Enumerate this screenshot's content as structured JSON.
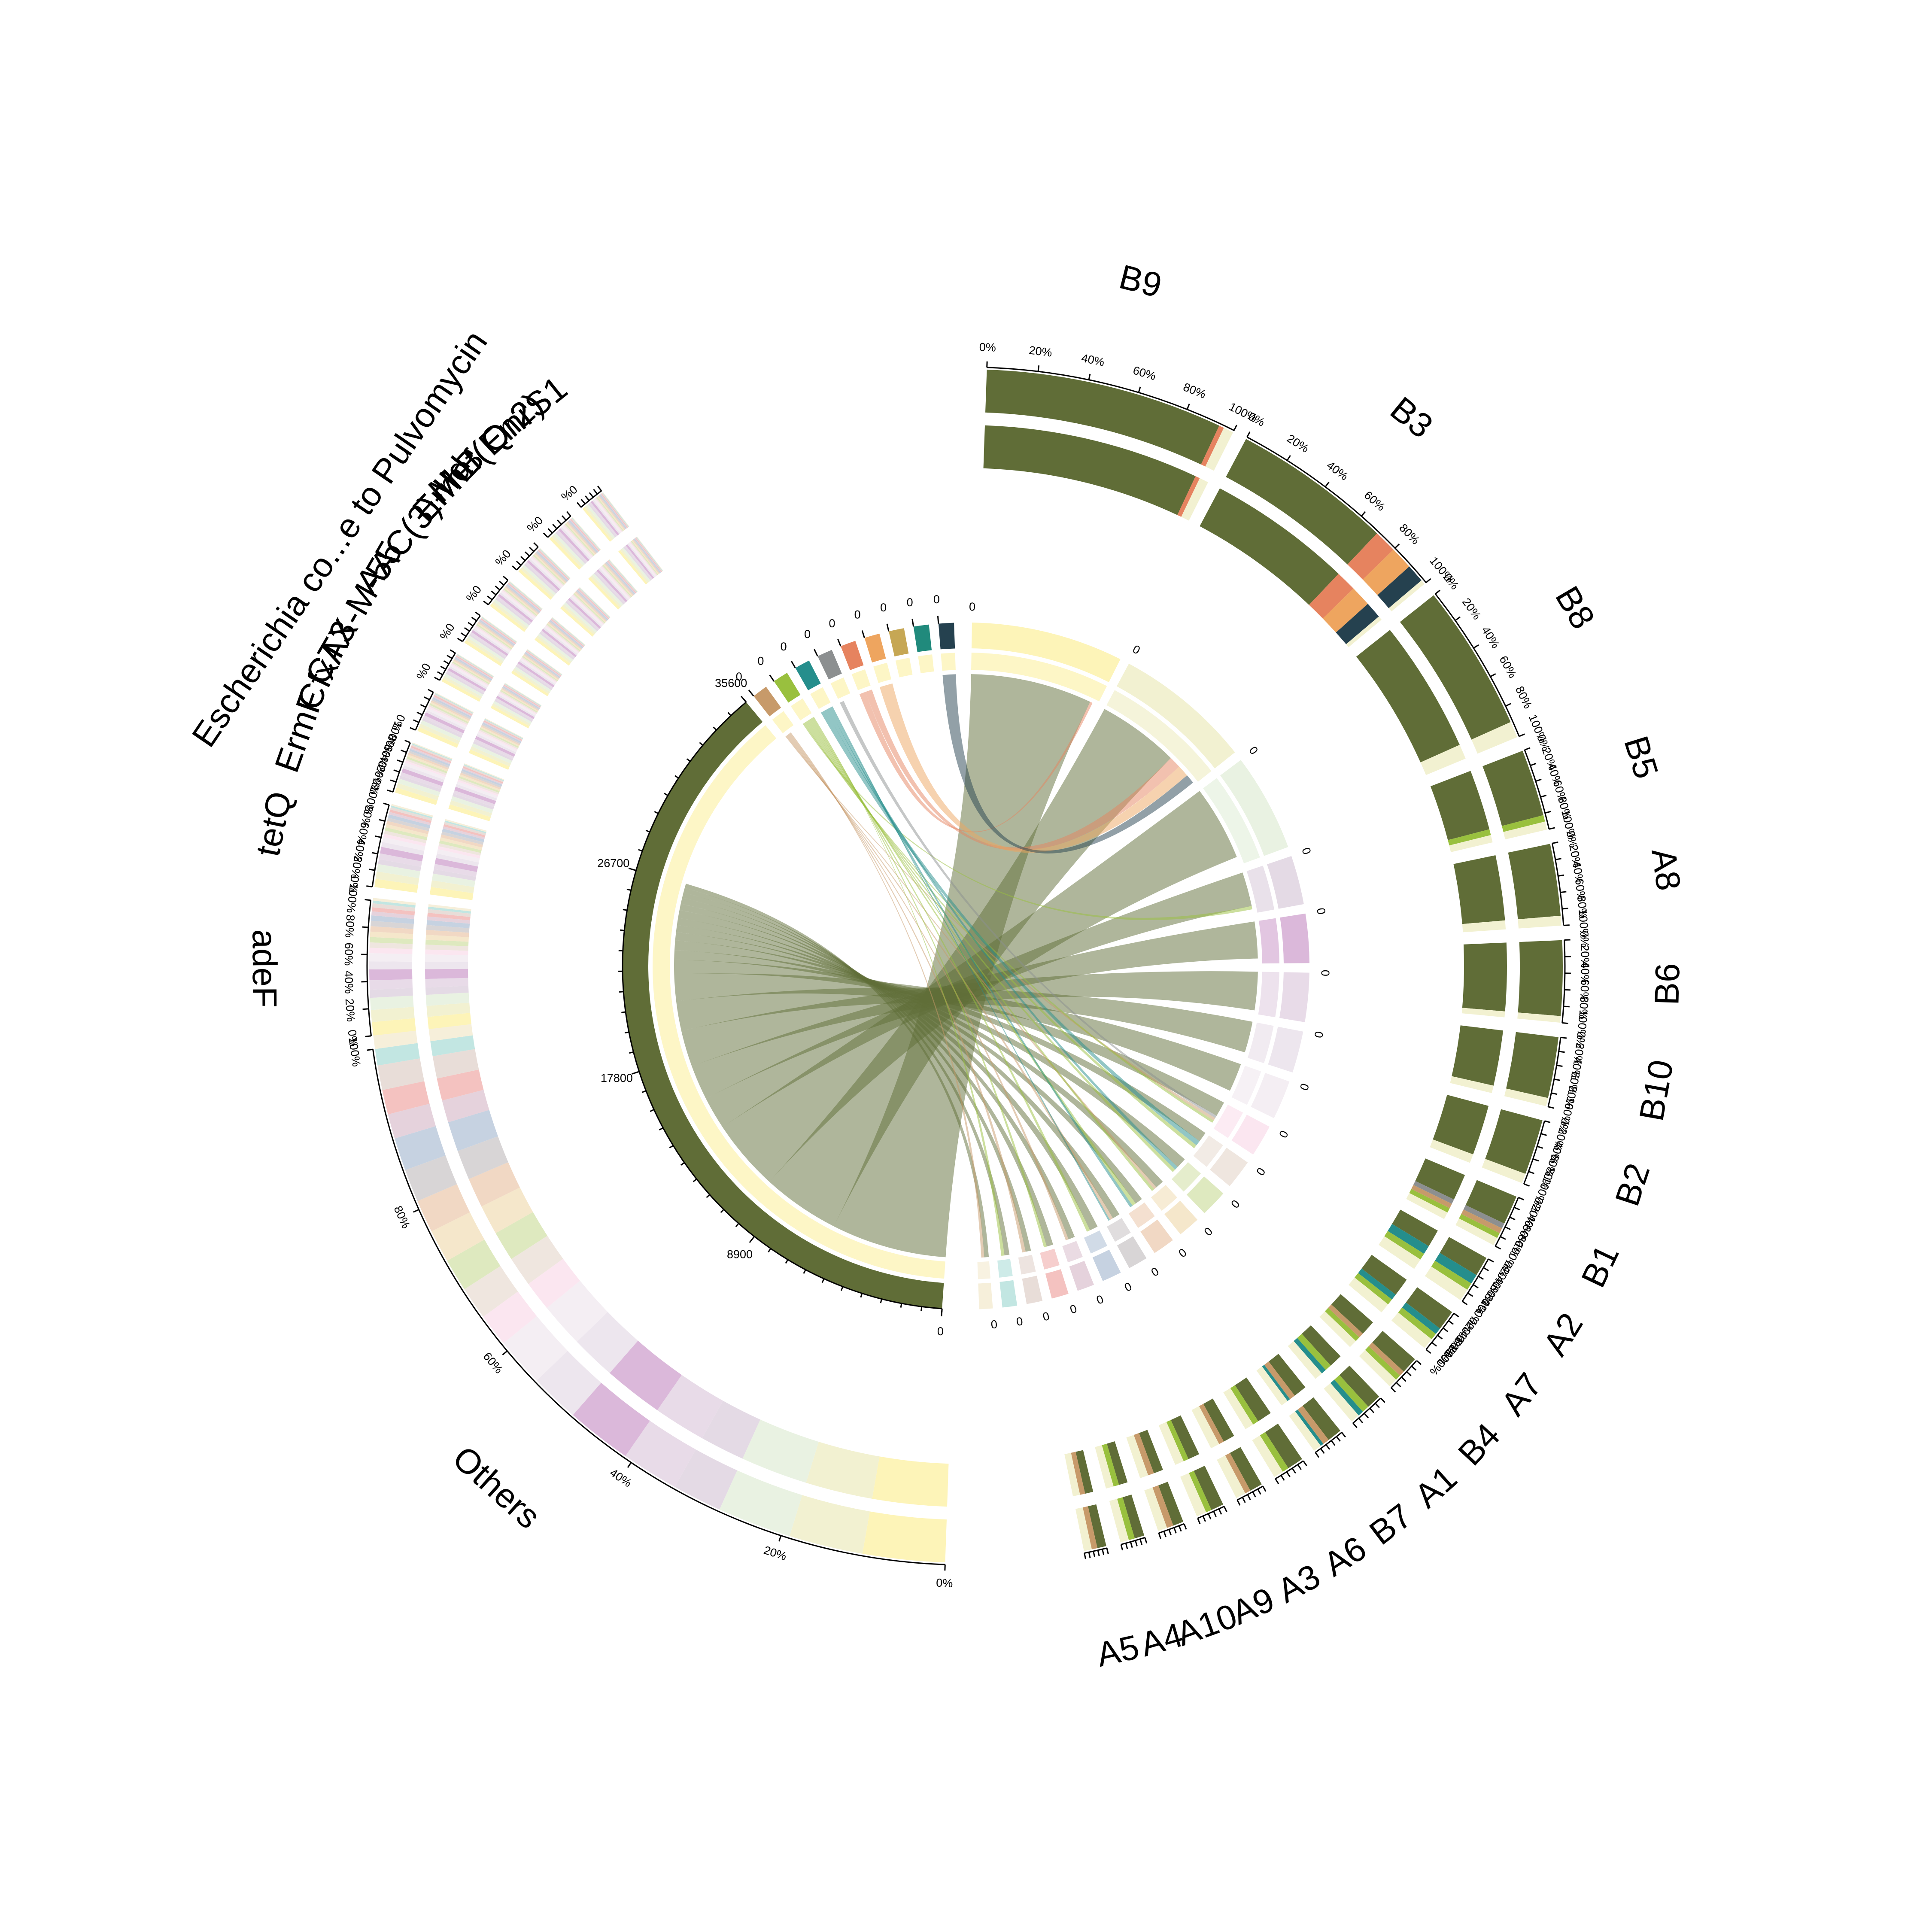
{
  "chart_data": {
    "type": "chord",
    "title": "",
    "genes": [
      {
        "name": "QnrS1",
        "color": "#25414f",
        "total": 210
      },
      {
        "name": "Mef(En2)",
        "color": "#208a7c",
        "total": 240
      },
      {
        "name": "ErmB",
        "color": "#c6a754",
        "total": 230
      },
      {
        "name": "AAC(3)-IId",
        "color": "#eea55f",
        "total": 230
      },
      {
        "name": "Escherichia co...e to Pulvomycin",
        "color": "#e6835f",
        "total": 260
      },
      {
        "name": "CTX-M-55",
        "color": "#8c8f90",
        "total": 410
      },
      {
        "name": "CfxA3",
        "color": "#258e8c",
        "total": 600
      },
      {
        "name": "ErmF",
        "color": "#99c03e",
        "total": 1300
      },
      {
        "name": "tetQ",
        "color": "#c79a6a",
        "total": 1700
      },
      {
        "name": "adeF",
        "color": "#606d37",
        "total": 34600
      }
    ],
    "gene_ticks": {
      "QnrS1": [
        "0"
      ],
      "Mef(En2)": [
        "0"
      ],
      "ErmB": [
        "0"
      ],
      "AAC(3)-IId": [
        "0"
      ],
      "Escherichia co...e to Pulvomycin": [
        "0"
      ],
      "CTX-M-55": [
        "0"
      ],
      "CfxA3": [
        "0"
      ],
      "ErmF": [
        "0"
      ],
      "tetQ": [
        "0"
      ],
      "adeF": [
        "0",
        "8900",
        "17800",
        "26700",
        "35600"
      ]
    },
    "samples": [
      {
        "name": "B9",
        "color": "#fdf4b8",
        "total": 6200,
        "composition": [
          {
            "gene": "adeF",
            "pct": 94
          },
          {
            "gene": "Escherichia co...e to Pulvomycin",
            "pct": 2
          },
          {
            "gene": "Others",
            "pct": 4
          }
        ]
      },
      {
        "name": "B3",
        "color": "#f2f1d1",
        "total": 5600,
        "composition": [
          {
            "gene": "adeF",
            "pct": 70
          },
          {
            "gene": "Escherichia co...e to Pulvomycin",
            "pct": 10
          },
          {
            "gene": "AAC(3)-IId",
            "pct": 10
          },
          {
            "gene": "QnrS1",
            "pct": 8
          },
          {
            "gene": "Others",
            "pct": 2
          }
        ]
      },
      {
        "name": "B8",
        "color": "#e9f2e2",
        "total": 4000,
        "composition": [
          {
            "gene": "adeF",
            "pct": 90
          },
          {
            "gene": "Others",
            "pct": 10
          }
        ]
      },
      {
        "name": "B5",
        "color": "#e4dae5",
        "total": 2000,
        "composition": [
          {
            "gene": "adeF",
            "pct": 82
          },
          {
            "gene": "ErmF",
            "pct": 8
          },
          {
            "gene": "Others",
            "pct": 10
          }
        ]
      },
      {
        "name": "A8",
        "color": "#dbb8da",
        "total": 2000,
        "composition": [
          {
            "gene": "adeF",
            "pct": 88
          },
          {
            "gene": "Others",
            "pct": 12
          }
        ]
      },
      {
        "name": "B6",
        "color": "#e8dbe8",
        "total": 2000,
        "composition": [
          {
            "gene": "adeF",
            "pct": 92
          },
          {
            "gene": "Others",
            "pct": 8
          }
        ]
      },
      {
        "name": "B10",
        "color": "#ede6ee",
        "total": 1700,
        "composition": [
          {
            "gene": "adeF",
            "pct": 88
          },
          {
            "gene": "Others",
            "pct": 12
          }
        ]
      },
      {
        "name": "B2",
        "color": "#f4eef3",
        "total": 1600,
        "composition": [
          {
            "gene": "adeF",
            "pct": 85
          },
          {
            "gene": "Others",
            "pct": 15
          }
        ]
      },
      {
        "name": "B1",
        "color": "#fbe6f0",
        "total": 1300,
        "composition": [
          {
            "gene": "adeF",
            "pct": 55
          },
          {
            "gene": "CTX-M-55",
            "pct": 10
          },
          {
            "gene": "tetQ",
            "pct": 10
          },
          {
            "gene": "ErmF",
            "pct": 10
          },
          {
            "gene": "Others",
            "pct": 15
          }
        ]
      },
      {
        "name": "A2",
        "color": "#efe6df",
        "total": 1200,
        "composition": [
          {
            "gene": "adeF",
            "pct": 40
          },
          {
            "gene": "CfxA3",
            "pct": 20
          },
          {
            "gene": "ErmF",
            "pct": 15
          },
          {
            "gene": "Others",
            "pct": 25
          }
        ]
      },
      {
        "name": "A7",
        "color": "#dee9bf",
        "total": 1100,
        "composition": [
          {
            "gene": "adeF",
            "pct": 45
          },
          {
            "gene": "CfxA3",
            "pct": 15
          },
          {
            "gene": "ErmF",
            "pct": 15
          },
          {
            "gene": "Others",
            "pct": 25
          }
        ]
      },
      {
        "name": "B4",
        "color": "#f5e7cb",
        "total": 900,
        "composition": [
          {
            "gene": "adeF",
            "pct": 45
          },
          {
            "gene": "tetQ",
            "pct": 15
          },
          {
            "gene": "ErmF",
            "pct": 15
          },
          {
            "gene": "Others",
            "pct": 25
          }
        ]
      },
      {
        "name": "A1",
        "color": "#f1d8c4",
        "total": 900,
        "composition": [
          {
            "gene": "adeF",
            "pct": 40
          },
          {
            "gene": "ErmF",
            "pct": 20
          },
          {
            "gene": "CfxA3",
            "pct": 15
          },
          {
            "gene": "Others",
            "pct": 25
          }
        ]
      },
      {
        "name": "B7",
        "color": "#d8d5d6",
        "total": 800,
        "composition": [
          {
            "gene": "adeF",
            "pct": 45
          },
          {
            "gene": "tetQ",
            "pct": 20
          },
          {
            "gene": "CfxA3",
            "pct": 10
          },
          {
            "gene": "Others",
            "pct": 25
          }
        ]
      },
      {
        "name": "A6",
        "color": "#c6d2e1",
        "total": 800,
        "composition": [
          {
            "gene": "adeF",
            "pct": 50
          },
          {
            "gene": "ErmF",
            "pct": 20
          },
          {
            "gene": "Others",
            "pct": 30
          }
        ]
      },
      {
        "name": "A3",
        "color": "#e5d2dc",
        "total": 700,
        "composition": [
          {
            "gene": "adeF",
            "pct": 45
          },
          {
            "gene": "tetQ",
            "pct": 20
          },
          {
            "gene": "Others",
            "pct": 35
          }
        ]
      },
      {
        "name": "A9",
        "color": "#f4c2c0",
        "total": 700,
        "composition": [
          {
            "gene": "adeF",
            "pct": 45
          },
          {
            "gene": "ErmF",
            "pct": 20
          },
          {
            "gene": "Others",
            "pct": 35
          }
        ]
      },
      {
        "name": "A10",
        "color": "#e8ddd8",
        "total": 650,
        "composition": [
          {
            "gene": "adeF",
            "pct": 40
          },
          {
            "gene": "tetQ",
            "pct": 25
          },
          {
            "gene": "Others",
            "pct": 35
          }
        ]
      },
      {
        "name": "A4",
        "color": "#c2e6e2",
        "total": 600,
        "composition": [
          {
            "gene": "adeF",
            "pct": 40
          },
          {
            "gene": "ErmF",
            "pct": 25
          },
          {
            "gene": "Others",
            "pct": 35
          }
        ]
      },
      {
        "name": "A5",
        "color": "#f6efda",
        "total": 550,
        "composition": [
          {
            "gene": "adeF",
            "pct": 40
          },
          {
            "gene": "tetQ",
            "pct": 25
          },
          {
            "gene": "Others",
            "pct": 35
          }
        ]
      }
    ],
    "others_ring": {
      "name": "Others",
      "ticks": [
        "0%",
        "20%",
        "40%",
        "60%",
        "80%",
        "100%"
      ],
      "composition": [
        {
          "sample": "B9",
          "pct": 10
        },
        {
          "sample": "B3",
          "pct": 9
        },
        {
          "sample": "B8",
          "pct": 9
        },
        {
          "sample": "B5",
          "pct": 6
        },
        {
          "sample": "B6",
          "pct": 7
        },
        {
          "sample": "A8",
          "pct": 8
        },
        {
          "sample": "B10",
          "pct": 6
        },
        {
          "sample": "B2",
          "pct": 6
        },
        {
          "sample": "B1",
          "pct": 4
        },
        {
          "sample": "A2",
          "pct": 4
        },
        {
          "sample": "A7",
          "pct": 4
        },
        {
          "sample": "B4",
          "pct": 4
        },
        {
          "sample": "A1",
          "pct": 4
        },
        {
          "sample": "B7",
          "pct": 4
        },
        {
          "sample": "A6",
          "pct": 4
        },
        {
          "sample": "A3",
          "pct": 3
        },
        {
          "sample": "A9",
          "pct": 3
        },
        {
          "sample": "A10",
          "pct": 3
        },
        {
          "sample": "A4",
          "pct": 2
        },
        {
          "sample": "A5",
          "pct": 2
        }
      ]
    },
    "percent_ticks": [
      "0%",
      "20%",
      "40%",
      "60%",
      "80%",
      "100%"
    ],
    "others_color": "#f2f1d1"
  }
}
